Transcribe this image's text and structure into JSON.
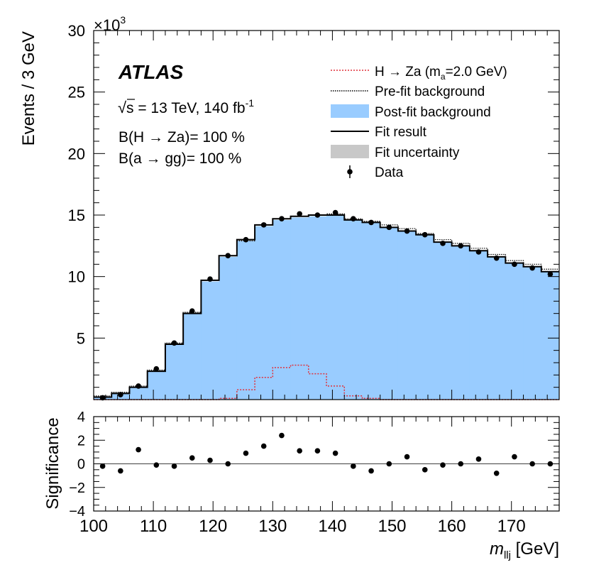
{
  "chart_data": [
    {
      "type": "bar",
      "panel": "main",
      "ylabel": "Events / 3 GeV",
      "y_multiplier": "×10",
      "y_multiplier_exp": "3",
      "ylim": [
        0,
        30000
      ],
      "xlim": [
        100,
        178
      ],
      "y_ticks": [
        5,
        10,
        15,
        20,
        25,
        30
      ],
      "x_bin_edges": [
        100,
        103,
        106,
        109,
        112,
        115,
        118,
        121,
        124,
        127,
        130,
        133,
        136,
        139,
        142,
        145,
        148,
        151,
        154,
        157,
        160,
        163,
        166,
        169,
        172,
        175,
        178
      ],
      "experiment_label": "ATLAS",
      "energy_text": "s = 13 TeV, 140 fb",
      "lumi_sup": "-1",
      "br_lines": [
        "B(H → Za)= 100 %",
        "B(a → gg)= 100 %"
      ],
      "legend": {
        "placement": "top-right",
        "signal": {
          "pre": "H → Za (m",
          "sub": "a",
          "post": "=2.0 GeV)"
        },
        "prefit": "Pre-fit background",
        "postfit": "Post-fit background",
        "fit": "Fit result",
        "unc": "Fit uncertainty",
        "data": "Data"
      },
      "series": [
        {
          "key": "postfit_background",
          "color": "#99ccff",
          "values": [
            200,
            500,
            1000,
            2300,
            4500,
            7000,
            9600,
            11600,
            12900,
            14100,
            14600,
            14800,
            14900,
            15000,
            14600,
            14400,
            14000,
            13700,
            13400,
            12800,
            12500,
            12100,
            11600,
            11100,
            10800,
            10400
          ]
        },
        {
          "key": "prefit_background",
          "values": [
            300,
            600,
            1100,
            2400,
            4600,
            7100,
            9700,
            11700,
            12900,
            14200,
            14700,
            14900,
            15000,
            15100,
            14700,
            14500,
            14200,
            13900,
            13500,
            13000,
            12700,
            12300,
            11800,
            11300,
            11000,
            10600
          ]
        },
        {
          "key": "fit_result",
          "values": [
            200,
            500,
            1000,
            2300,
            4500,
            7000,
            9700,
            11700,
            13000,
            14200,
            14700,
            14900,
            15000,
            15000,
            14600,
            14400,
            14000,
            13700,
            13400,
            12800,
            12500,
            12100,
            11600,
            11100,
            10800,
            10400
          ]
        },
        {
          "key": "signal",
          "color": "#e0323c",
          "values": [
            0,
            0,
            0,
            0,
            0,
            0,
            0,
            100,
            800,
            1800,
            2600,
            2800,
            2100,
            1100,
            300,
            100,
            0,
            0,
            0,
            0,
            0,
            0,
            0,
            0,
            0,
            0
          ]
        },
        {
          "key": "data",
          "x": [
            101.5,
            104.5,
            107.5,
            110.5,
            113.5,
            116.5,
            119.5,
            122.5,
            125.5,
            128.5,
            131.5,
            134.5,
            137.5,
            140.5,
            143.5,
            146.5,
            149.5,
            152.5,
            155.5,
            158.5,
            161.5,
            164.5,
            167.5,
            170.5,
            173.5,
            176.5
          ],
          "values": [
            150,
            400,
            1100,
            2500,
            4600,
            7200,
            9800,
            11700,
            13000,
            14200,
            14700,
            15100,
            15000,
            15200,
            14700,
            14400,
            14000,
            13700,
            13400,
            12700,
            12500,
            12000,
            11500,
            11000,
            10700,
            10200
          ]
        }
      ]
    },
    {
      "type": "scatter",
      "panel": "ratio",
      "ylabel": "Significance",
      "xlabel_var": "m",
      "xlabel_sub": "llj",
      "xlabel_unit": " [GeV]",
      "ylim": [
        -4,
        4
      ],
      "y_ticks": [
        -4,
        -2,
        0,
        2,
        4
      ],
      "x_ticks": [
        100,
        110,
        120,
        130,
        140,
        150,
        160,
        170
      ],
      "x": [
        101.5,
        104.5,
        107.5,
        110.5,
        113.5,
        116.5,
        119.5,
        122.5,
        125.5,
        128.5,
        131.5,
        134.5,
        137.5,
        140.5,
        143.5,
        146.5,
        149.5,
        152.5,
        155.5,
        158.5,
        161.5,
        164.5,
        167.5,
        170.5,
        173.5,
        176.5
      ],
      "values": [
        -0.2,
        -0.6,
        1.2,
        -0.1,
        -0.2,
        0.5,
        0.3,
        0.0,
        0.9,
        1.5,
        2.4,
        1.1,
        1.1,
        0.9,
        -0.2,
        -0.6,
        0.0,
        0.6,
        -0.5,
        -0.1,
        0.0,
        0.4,
        -0.8,
        0.6,
        0.0,
        0.0
      ]
    }
  ]
}
